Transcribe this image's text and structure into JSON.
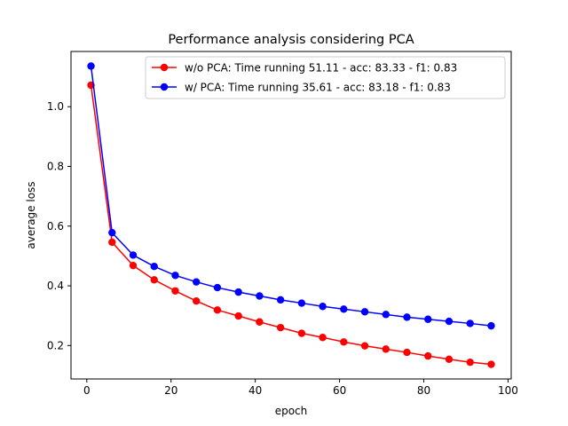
{
  "chart_data": {
    "type": "line",
    "title": "Performance analysis considering PCA",
    "xlabel": "epoch",
    "ylabel": "average loss",
    "xlim": [
      -3.75,
      100.75
    ],
    "ylim": [
      0.088,
      1.185
    ],
    "xticks": [
      0,
      20,
      40,
      60,
      80,
      100
    ],
    "yticks": [
      0.2,
      0.4,
      0.6,
      0.8,
      1.0
    ],
    "ytick_labels": [
      "0.2",
      "0.4",
      "0.6",
      "0.8",
      "1.0"
    ],
    "grid": false,
    "legend_position": "upper right",
    "x": [
      1,
      6,
      11,
      16,
      21,
      26,
      31,
      36,
      41,
      46,
      51,
      56,
      61,
      66,
      71,
      76,
      81,
      86,
      91,
      96
    ],
    "series": [
      {
        "name": "w/o PCA: Time running 51.11 - acc: 83.33 - f1: 0.83",
        "color": "#ff0000",
        "marker": "circle",
        "values": [
          1.072,
          0.546,
          0.468,
          0.42,
          0.383,
          0.349,
          0.319,
          0.299,
          0.279,
          0.26,
          0.241,
          0.227,
          0.212,
          0.199,
          0.188,
          0.177,
          0.165,
          0.154,
          0.144,
          0.137
        ]
      },
      {
        "name": "w/ PCA: Time running 35.61 - acc: 83.18 - f1: 0.83",
        "color": "#0000ff",
        "marker": "circle",
        "values": [
          1.136,
          0.578,
          0.503,
          0.465,
          0.435,
          0.413,
          0.394,
          0.379,
          0.366,
          0.353,
          0.342,
          0.331,
          0.322,
          0.313,
          0.304,
          0.295,
          0.288,
          0.281,
          0.274,
          0.266
        ]
      }
    ]
  }
}
